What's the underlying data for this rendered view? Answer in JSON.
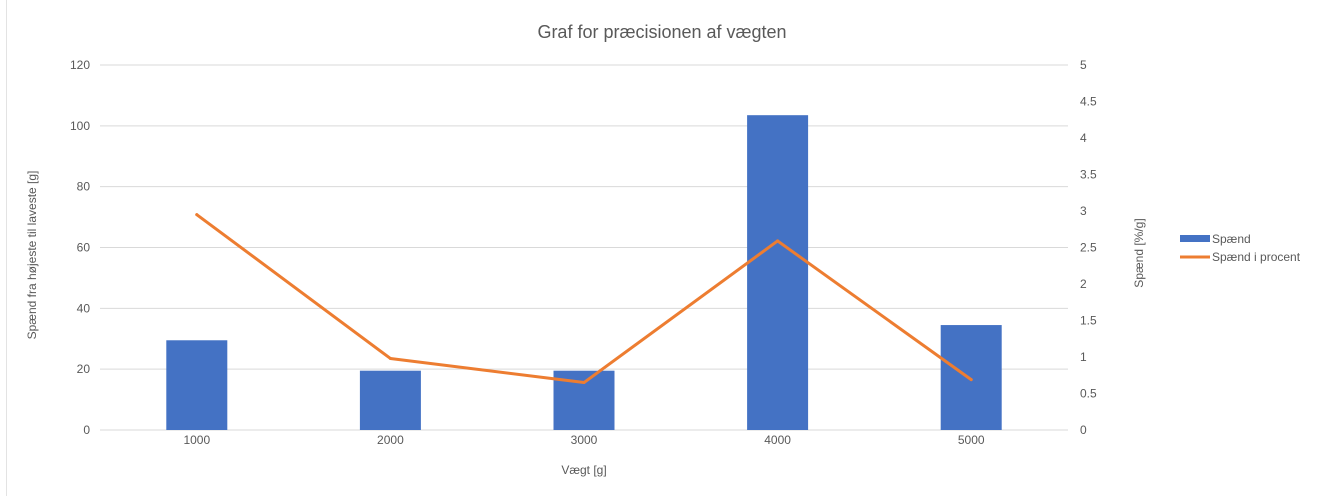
{
  "chart_data": {
    "type": "bar",
    "title": "Graf for præcisionen af vægten",
    "xlabel": "Vægt [g]",
    "ylabel": "Spænd fra højeste til laveste [g]",
    "y2label": "Spænd [%/g]",
    "categories": [
      "1000",
      "2000",
      "3000",
      "4000",
      "5000"
    ],
    "ylim": [
      0,
      120
    ],
    "yticks": [
      "0",
      "20",
      "40",
      "60",
      "80",
      "100",
      "120"
    ],
    "y2lim": [
      0,
      5
    ],
    "y2ticks": [
      "0",
      "0.5",
      "1",
      "1.5",
      "2",
      "2.5",
      "3",
      "3.5",
      "4",
      "4.5",
      "5"
    ],
    "grid": true,
    "legend_position": "right",
    "series": [
      {
        "name": "Spænd",
        "type": "bar",
        "axis": "left",
        "color": "#4472c4",
        "values": [
          29.5,
          19.5,
          19.5,
          103.5,
          34.5
        ]
      },
      {
        "name": "Spænd i procent",
        "type": "line",
        "axis": "right",
        "color": "#ed7d31",
        "values": [
          2.95,
          0.98,
          0.65,
          2.59,
          0.69
        ]
      }
    ]
  }
}
